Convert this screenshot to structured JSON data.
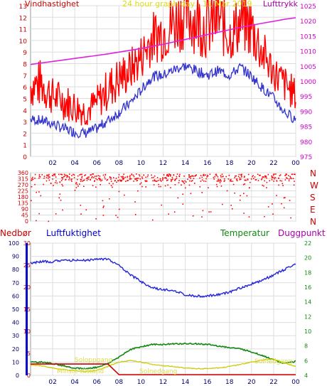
{
  "header": {
    "title": "24 hour graph day : 11 Mar 2019",
    "left_label": "Vindhastighet",
    "right_label": "Lufttrykk"
  },
  "lower_header": {
    "rain_label": "Nedbør",
    "humidity_label": "Luftfuktighet",
    "temp_label": "Temperatur",
    "dew_label": "Duggpunkt"
  },
  "colors": {
    "wind": "#ff0000",
    "wind_avg": "#3333cc",
    "pressure": "#dd22dd",
    "humidity": "#2222dd",
    "temperature": "#118811",
    "dewpoint": "#cccc00",
    "rain": "#cc0000",
    "axis_left": "#cc0000",
    "axis_right": "#cc00cc",
    "grid": "#dddddd"
  },
  "chart_data": [
    {
      "type": "line",
      "name": "wind-pressure",
      "x_ticks": [
        "02",
        "04",
        "06",
        "08",
        "10",
        "12",
        "14",
        "16",
        "18",
        "20",
        "22",
        "00"
      ],
      "y_left": {
        "label": "Vindhastighet",
        "ticks": [
          0,
          1,
          2,
          3,
          4,
          5,
          6,
          7,
          8,
          9,
          10,
          11,
          12,
          13
        ],
        "lim": [
          0,
          13
        ]
      },
      "y_right": {
        "label": "Lufttrykk",
        "ticks": [
          975,
          980,
          985,
          990,
          995,
          1000,
          1005,
          1010,
          1015,
          1020,
          1025
        ],
        "lim": [
          975,
          1025
        ]
      },
      "hours": [
        0,
        1,
        2,
        3,
        4,
        5,
        6,
        7,
        8,
        9,
        10,
        11,
        12,
        13,
        14,
        15,
        16,
        17,
        18,
        19,
        20,
        21,
        22,
        23,
        24
      ],
      "gust": [
        6.1,
        6.3,
        5.2,
        4.8,
        4.3,
        3.9,
        4.6,
        5.8,
        6.7,
        7.4,
        8.6,
        10.2,
        10.8,
        11.5,
        12.4,
        11.8,
        11.2,
        11.9,
        10.4,
        11.6,
        11.1,
        8.9,
        7.3,
        6.2,
        5.3
      ],
      "avg": [
        3.2,
        3.1,
        2.8,
        2.4,
        2.1,
        2.0,
        2.4,
        3.1,
        3.8,
        4.6,
        5.7,
        6.9,
        7.0,
        7.5,
        7.8,
        7.4,
        7.0,
        7.4,
        7.0,
        7.7,
        6.9,
        5.9,
        5.0,
        3.8,
        3.2
      ],
      "pressure": [
        1005.5,
        1006.0,
        1006.5,
        1007.0,
        1007.5,
        1008.0,
        1008.5,
        1009.0,
        1009.6,
        1010.2,
        1010.8,
        1011.5,
        1012.2,
        1013.0,
        1013.8,
        1014.6,
        1015.4,
        1016.2,
        1017.0,
        1017.8,
        1018.5,
        1019.2,
        1019.8,
        1020.5,
        1021.0
      ]
    },
    {
      "type": "scatter",
      "name": "wind-direction",
      "x_ticks": [
        "02",
        "04",
        "06",
        "08",
        "10",
        "12",
        "14",
        "16",
        "18",
        "20",
        "22",
        "00"
      ],
      "y_left_ticks": [
        0,
        45,
        90,
        135,
        180,
        225,
        270,
        315,
        360
      ],
      "y_right_ticks": [
        "N",
        "W",
        "S",
        "E",
        "N"
      ],
      "ylim": [
        0,
        360
      ]
    },
    {
      "type": "line",
      "name": "temp-humidity-rain",
      "x_ticks": [
        "02",
        "04",
        "06",
        "08",
        "10",
        "12",
        "14",
        "16",
        "18",
        "20",
        "22",
        "00"
      ],
      "y_rain": {
        "ticks": [
          0,
          10,
          20,
          30,
          40,
          50,
          60,
          70,
          80,
          90,
          100
        ],
        "lim": [
          0,
          100
        ]
      },
      "y_humidity": {
        "ticks": [
          0,
          5,
          10,
          15,
          20,
          25,
          30
        ],
        "lim": [
          0,
          30
        ]
      },
      "y_temp": {
        "ticks": [
          4,
          6,
          8,
          10,
          12,
          14,
          16,
          18,
          20,
          22
        ],
        "lim": [
          4,
          22
        ]
      },
      "hours": [
        0,
        1,
        2,
        3,
        4,
        5,
        6,
        7,
        8,
        9,
        10,
        11,
        12,
        13,
        14,
        15,
        16,
        17,
        18,
        19,
        20,
        21,
        22,
        23,
        24
      ],
      "humidity": [
        85,
        86,
        86,
        87,
        87,
        87,
        88,
        88,
        83,
        76,
        71,
        66,
        65,
        64,
        61,
        60,
        60,
        61,
        63,
        66,
        69,
        72,
        76,
        80,
        84
      ],
      "temperature": [
        5.8,
        5.8,
        5.6,
        5.3,
        5.0,
        4.9,
        5.1,
        5.6,
        6.5,
        7.5,
        7.9,
        8.2,
        8.2,
        8.3,
        8.3,
        8.3,
        8.2,
        8.0,
        7.8,
        7.6,
        7.2,
        6.7,
        6.1,
        5.6,
        5.9
      ],
      "dewpoint": [
        5.4,
        5.3,
        5.0,
        4.8,
        4.6,
        4.5,
        4.7,
        5.2,
        5.8,
        6.0,
        5.8,
        5.5,
        5.3,
        5.2,
        5.0,
        4.9,
        4.9,
        5.0,
        5.2,
        5.5,
        5.8,
        6.1,
        6.2,
        5.7,
        5.2
      ],
      "rain": [
        2,
        2,
        2,
        2,
        2,
        2,
        2,
        2,
        0,
        0,
        0,
        0,
        0,
        0,
        0,
        0,
        0,
        0,
        0,
        0,
        0,
        0,
        0,
        0,
        0
      ],
      "annotations": [
        "Soloppgang",
        "Solnedgang",
        "Minste tilstand",
        "Solnedgang"
      ]
    }
  ]
}
